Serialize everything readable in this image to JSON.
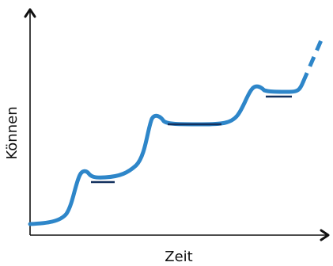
{
  "diagram": {
    "x_axis_label": "Zeit",
    "y_axis_label": "Können",
    "colors": {
      "curve": "#2E86C9",
      "plateau_marker": "#12305E",
      "axis": "#111111"
    },
    "curve_style": "solid-then-dashed",
    "plateau_count": 4
  }
}
